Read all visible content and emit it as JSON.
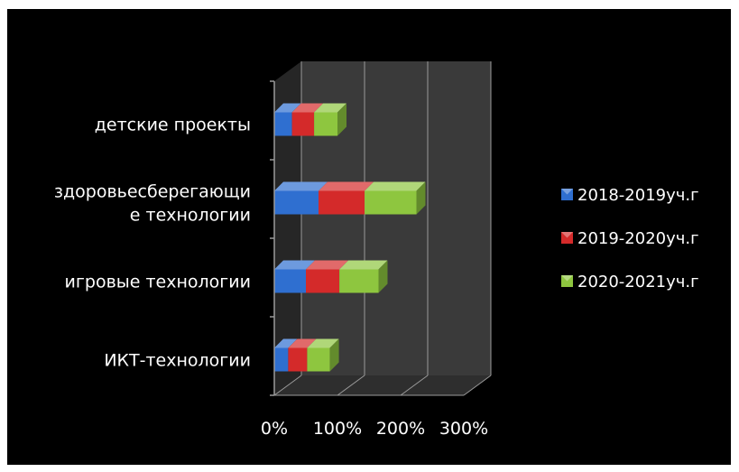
{
  "chart_data": {
    "type": "bar",
    "orientation": "horizontal",
    "stacked": true,
    "three_d": true,
    "title": "",
    "xlabel": "",
    "ylabel": "",
    "categories": [
      "ИКТ-технологии",
      "игровые технологии",
      "здоровьесберегающи|е технологии",
      "детские проекты"
    ],
    "category_labels": [
      [
        "ИКТ-технологии"
      ],
      [
        "игровые технологии"
      ],
      [
        "здоровьесберегающи",
        "е технологии"
      ],
      [
        "детские проекты"
      ]
    ],
    "series": [
      {
        "name": "2018-2019уч.г",
        "values": [
          22,
          50,
          70,
          28
        ],
        "color": "#2f6fd0"
      },
      {
        "name": "2019-2020уч.г",
        "values": [
          30,
          53,
          73,
          35
        ],
        "color": "#d42a2a"
      },
      {
        "name": "2020-2021уч.г",
        "values": [
          36,
          62,
          82,
          37
        ],
        "color": "#8ec63f"
      }
    ],
    "xlim": [
      0,
      300
    ],
    "x_ticks": [
      "0%",
      "100%",
      "200%",
      "300%"
    ],
    "grid": true,
    "legend_position": "right",
    "colors": {
      "background": "#000000",
      "wall": "#3a3a3a",
      "gridline": "#9a9a9a",
      "text": "#ffffff"
    }
  }
}
